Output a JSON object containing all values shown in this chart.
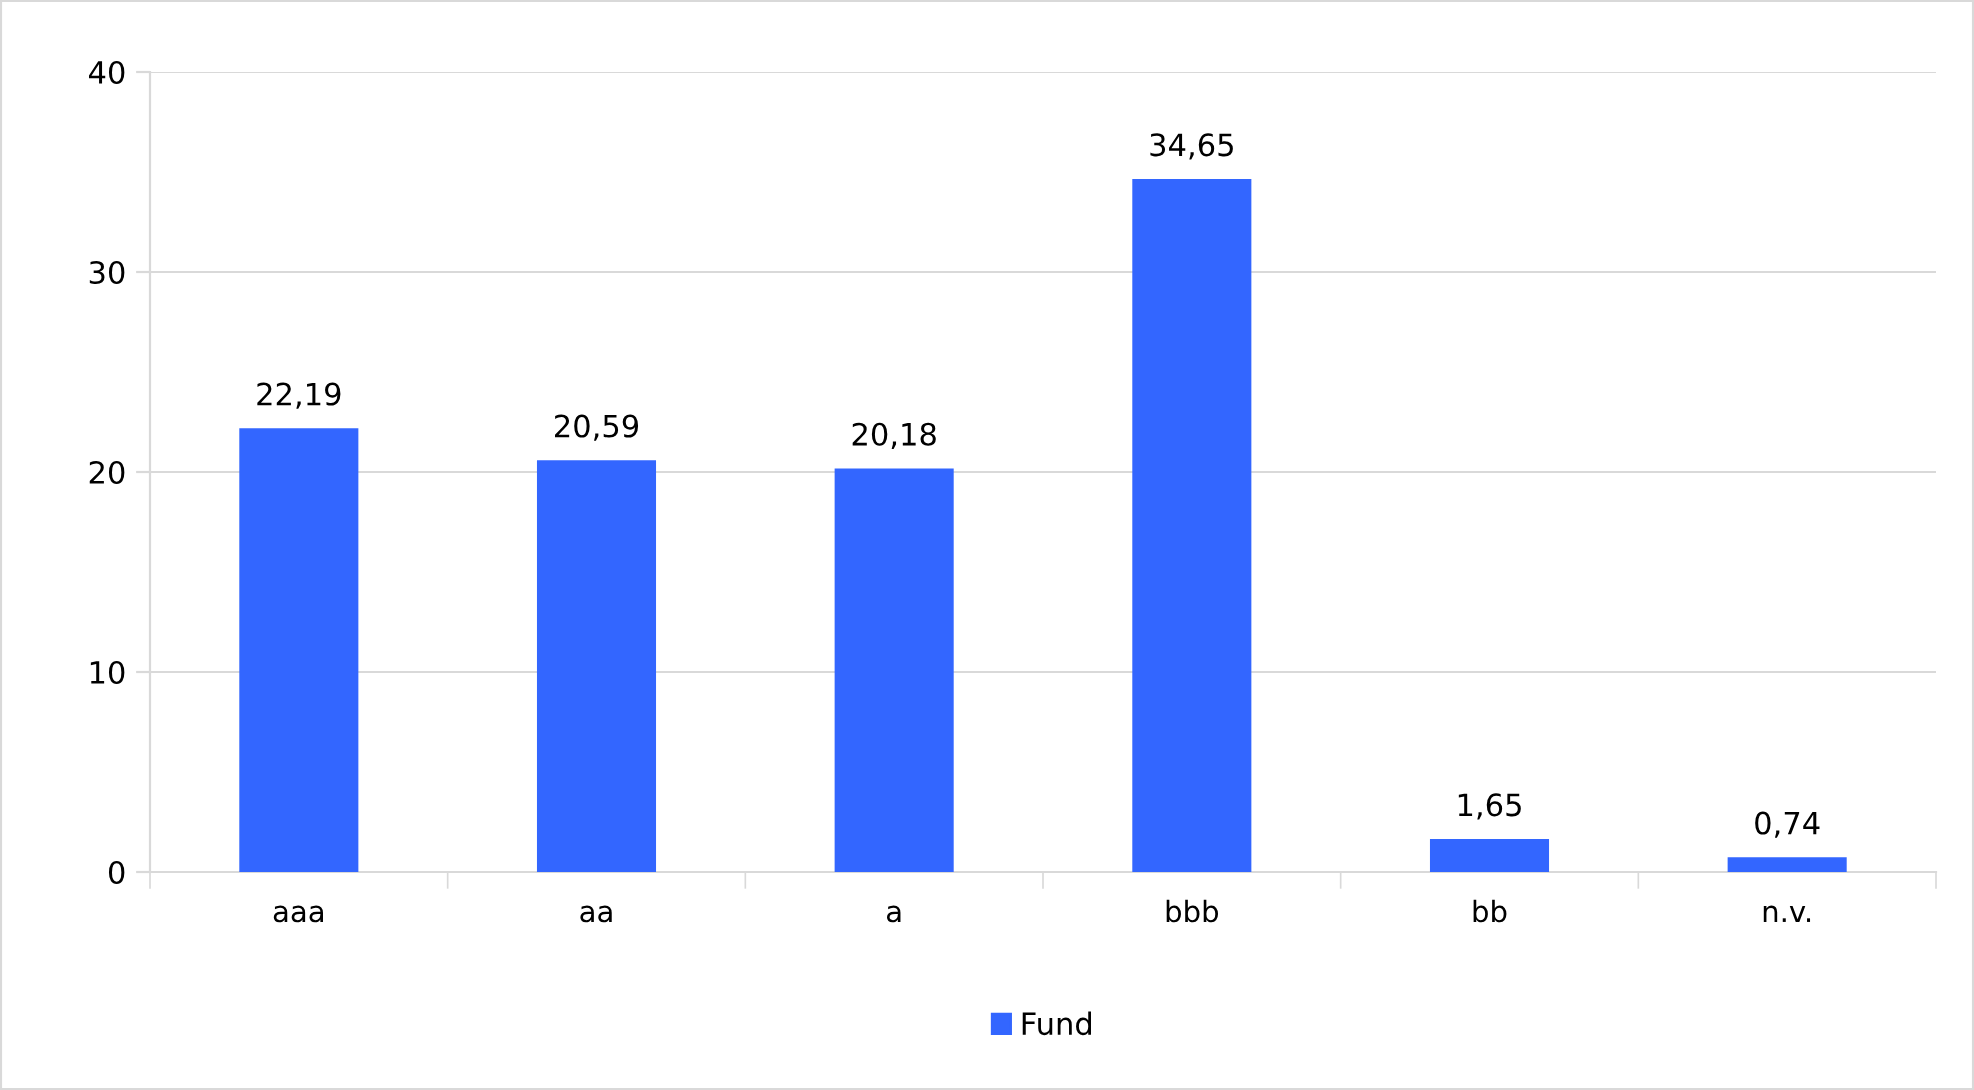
{
  "chart_data": {
    "type": "bar",
    "categories": [
      "aaa",
      "aa",
      "a",
      "bbb",
      "bb",
      "n.v."
    ],
    "series": [
      {
        "name": "Fund",
        "color": "#3366ff",
        "values": [
          22.19,
          20.59,
          20.18,
          34.65,
          1.65,
          0.74
        ],
        "value_labels": [
          "22,19",
          "20,59",
          "20,18",
          "34,65",
          "1,65",
          "0,74"
        ]
      }
    ],
    "ylim": [
      0,
      40
    ],
    "yticks": [
      0,
      10,
      20,
      30,
      40
    ],
    "grid": "y",
    "legend": "bottom"
  }
}
